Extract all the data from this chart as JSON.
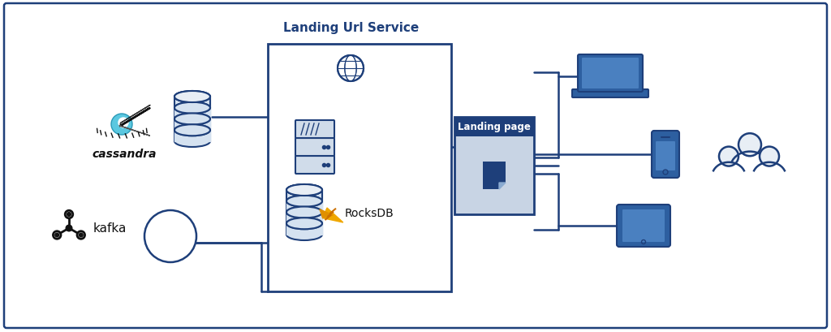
{
  "bg_color": "#ffffff",
  "border_color": "#1e3f7a",
  "line_color": "#1e3f7a",
  "dark_blue": "#1e3f7a",
  "server_color": "#d0dcea",
  "db_color": "#d0dcea",
  "lp_header_color": "#1e3f7a",
  "lp_body_color": "#c8d4e4",
  "lp_doc_color": "#1e3f7a",
  "device_color": "#2d5fa0",
  "device_screen": "#3a6ab5",
  "title": "Landing Url Service",
  "landing_page_label": "Landing page",
  "cassandra_label": "cassandra",
  "kafka_label": "kafka",
  "rocksdb_label": "RocksDB"
}
